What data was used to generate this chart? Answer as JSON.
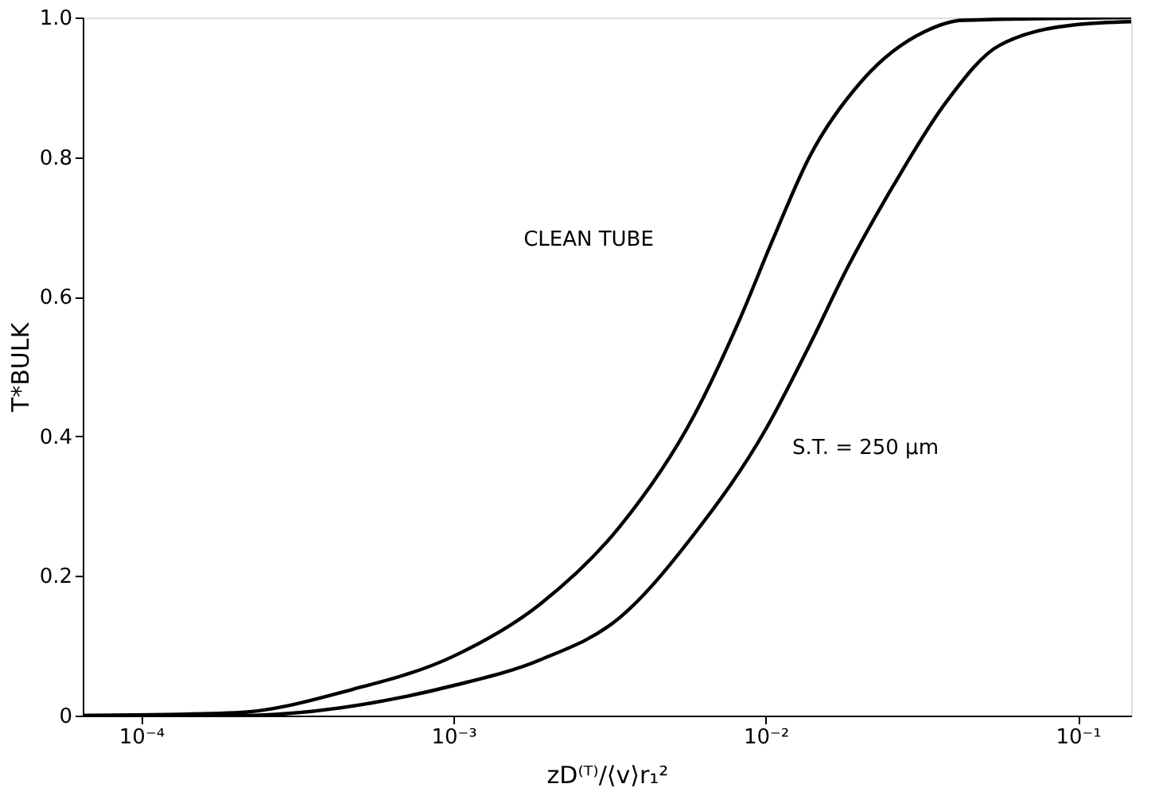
{
  "chart_data": {
    "type": "line",
    "xlabel": "zD⁽ᵀ⁾/⟨v⟩r₁²",
    "ylabel": "T*BULK",
    "log": "x",
    "grid": false,
    "legend": false,
    "marker": "none",
    "line_style": "solid",
    "xlim": [
      6.5e-05,
      0.148
    ],
    "ylim": [
      0,
      1
    ],
    "xticks": [
      {
        "value": 0.0001,
        "label": "10⁻⁴"
      },
      {
        "value": 0.001,
        "label": "10⁻³"
      },
      {
        "value": 0.01,
        "label": "10⁻²"
      },
      {
        "value": 0.1,
        "label": "10⁻¹"
      }
    ],
    "yticks": [
      0,
      0.2,
      0.4,
      0.6,
      0.8,
      {
        "value": 1,
        "label": "1.0"
      }
    ],
    "series": [
      {
        "color": "#000000",
        "x": [
          6.5e-05,
          0.0002,
          0.00047,
          0.001,
          0.0019,
          0.0034,
          0.0059,
          0.0083,
          0.0105,
          0.0138,
          0.0204,
          0.0324,
          0.0427,
          0.148
        ],
        "values": [
          0,
          0.004,
          0.037,
          0.085,
          0.16,
          0.27,
          0.43,
          0.57,
          0.68,
          0.8,
          0.91,
          0.98,
          0.996,
          1.0
        ]
      },
      {
        "color": "#000000",
        "x": [
          6.5e-05,
          0.0002,
          0.001,
          0.0019,
          0.0034,
          0.0059,
          0.01,
          0.0138,
          0.0182,
          0.0257,
          0.038,
          0.056,
          0.1,
          0.148
        ],
        "values": [
          0,
          0,
          0.043,
          0.08,
          0.14,
          0.26,
          0.41,
          0.53,
          0.64,
          0.76,
          0.88,
          0.96,
          0.99,
          0.994
        ]
      }
    ],
    "annotations": [
      "CLEAN TUBE",
      "S.T. = 250 μm"
    ]
  }
}
